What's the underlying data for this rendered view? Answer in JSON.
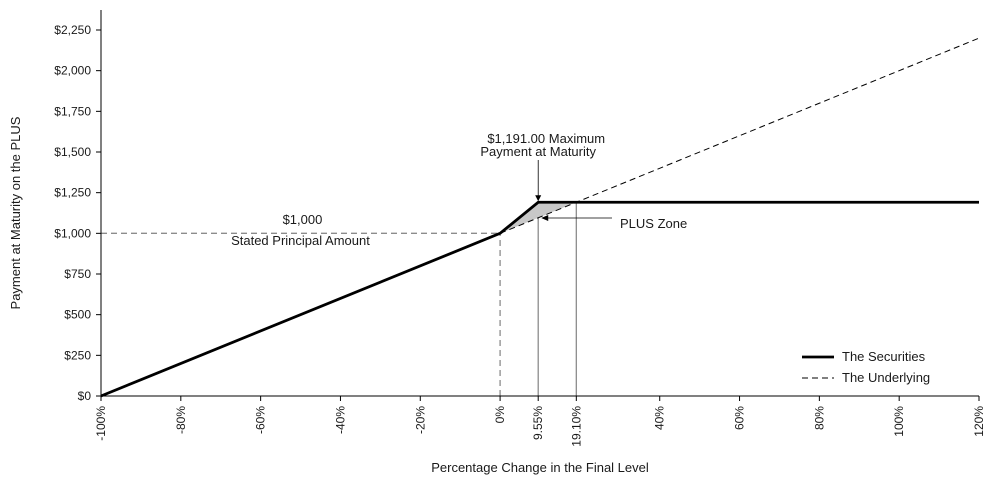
{
  "chart_data": {
    "type": "line",
    "xlabel": "Percentage Change in the Final Level",
    "ylabel": "Payment at Maturity on the PLUS",
    "xlim": [
      -100,
      120
    ],
    "ylim": [
      0,
      2250
    ],
    "x_ticks": [
      {
        "value": -100,
        "label": "-100%"
      },
      {
        "value": -80,
        "label": "-80%"
      },
      {
        "value": -60,
        "label": "-60%"
      },
      {
        "value": -40,
        "label": "-40%"
      },
      {
        "value": -20,
        "label": "-20%"
      },
      {
        "value": 0,
        "label": "0%"
      },
      {
        "value": 9.55,
        "label": "9.55%"
      },
      {
        "value": 19.1,
        "label": "19.10%"
      },
      {
        "value": 40,
        "label": "40%"
      },
      {
        "value": 60,
        "label": "60%"
      },
      {
        "value": 80,
        "label": "80%"
      },
      {
        "value": 100,
        "label": "100%"
      },
      {
        "value": 120,
        "label": "120%"
      }
    ],
    "y_ticks": [
      {
        "value": 0,
        "label": "$0"
      },
      {
        "value": 250,
        "label": "$250"
      },
      {
        "value": 500,
        "label": "$500"
      },
      {
        "value": 750,
        "label": "$750"
      },
      {
        "value": 1000,
        "label": "$1,000"
      },
      {
        "value": 1250,
        "label": "$1,250"
      },
      {
        "value": 1500,
        "label": "$1,500"
      },
      {
        "value": 1750,
        "label": "$1,750"
      },
      {
        "value": 2000,
        "label": "$2,000"
      },
      {
        "value": 2250,
        "label": "$2,250"
      }
    ],
    "series": [
      {
        "name": "The Securities",
        "style": "solid",
        "color": "#000000",
        "x": [
          -100,
          0,
          9.55,
          120
        ],
        "y": [
          0,
          1000,
          1191,
          1191
        ]
      },
      {
        "name": "The Underlying",
        "style": "dashed",
        "color": "#000000",
        "x": [
          0,
          120
        ],
        "y": [
          1000,
          2200
        ]
      }
    ],
    "reference_lines": [
      {
        "type": "horizontal",
        "y": 1000,
        "x_from": -100,
        "x_to": 0,
        "style": "dashed",
        "color": "#8c8c8c"
      },
      {
        "type": "vertical",
        "x": 0,
        "y_from": 0,
        "y_to": 1000,
        "style": "dashed",
        "color": "#8c8c8c"
      },
      {
        "type": "vertical",
        "x": 9.55,
        "y_from": 0,
        "y_to": 1191,
        "style": "solid",
        "color": "#8c8c8c"
      },
      {
        "type": "vertical",
        "x": 19.1,
        "y_from": 0,
        "y_to": 1191,
        "style": "solid",
        "color": "#8c8c8c"
      }
    ],
    "shaded_region": {
      "name": "PLUS Zone",
      "color": "#c8c8c8",
      "x": [
        0,
        9.55,
        19.1
      ],
      "y": [
        1000,
        1191,
        1191
      ]
    },
    "annotations": [
      {
        "id": "max-payment",
        "lines": [
          "$1,191.00 Maximum",
          "Payment at Maturity"
        ],
        "x": 9.55,
        "y": 1191
      },
      {
        "id": "principal",
        "lines": [
          "$1,000",
          "Stated Principal Amount"
        ],
        "x": -40,
        "y": 1000
      },
      {
        "id": "plus-zone",
        "lines": [
          "PLUS Zone"
        ],
        "x": 12,
        "y": 1100
      }
    ],
    "legend_placement": "bottom-right",
    "grid": false
  }
}
